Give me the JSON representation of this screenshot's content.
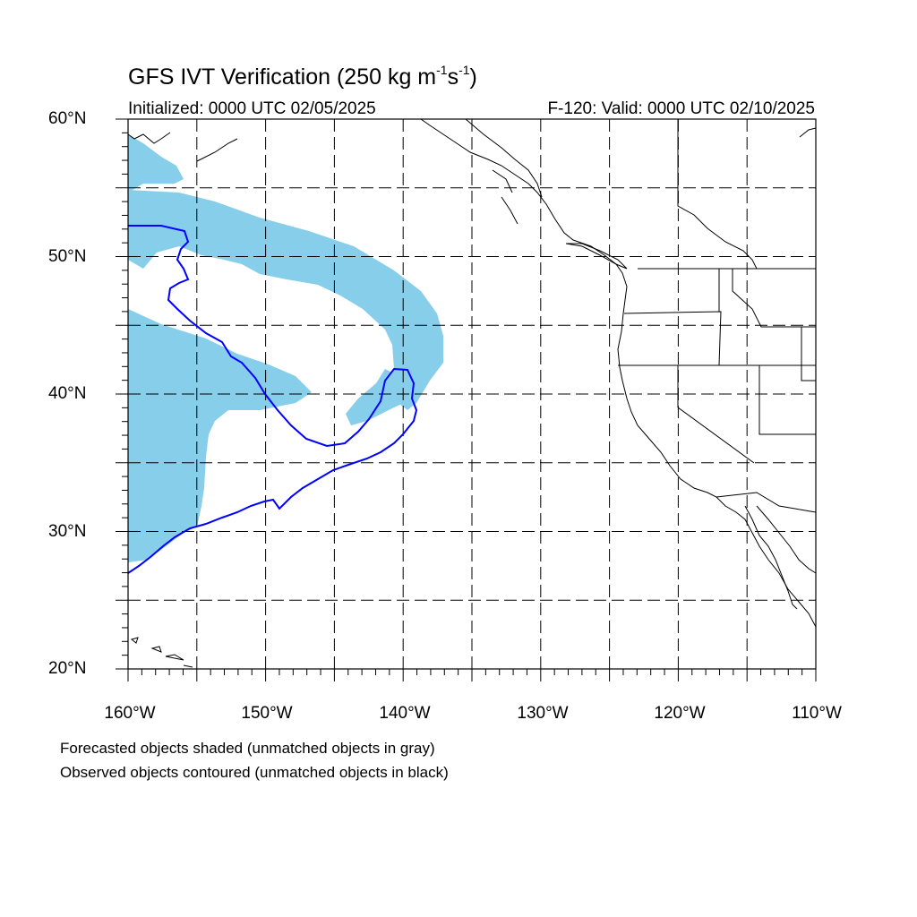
{
  "title": {
    "prefix": "GFS IVT Verification (250 kg m",
    "exp1": "-1",
    "mid": "s",
    "exp2": "-1",
    "suffix": ")"
  },
  "subtitle_left": "Initialized: 0000 UTC 02/05/2025",
  "subtitle_right": "F-120: Valid: 0000 UTC 02/10/2025",
  "lat_labels": [
    "60°N",
    "50°N",
    "40°N",
    "30°N",
    "20°N"
  ],
  "lon_labels": [
    "160°W",
    "150°W",
    "140°W",
    "130°W",
    "120°W",
    "110°W"
  ],
  "notes": [
    "Forecasted objects shaded (unmatched objects in gray)",
    "Observed objects contoured (unmatched objects in black)"
  ],
  "colors": {
    "forecast_fill": "#87ceeb",
    "observed_contour": "#0000ff",
    "coastline": "#000000",
    "grid": "#000000"
  },
  "map": {
    "lon_range": [
      -160,
      -110
    ],
    "lat_range": [
      20,
      60
    ],
    "grid_lon_step": 5,
    "grid_lat_step": 5,
    "grid_style": "dashed"
  }
}
